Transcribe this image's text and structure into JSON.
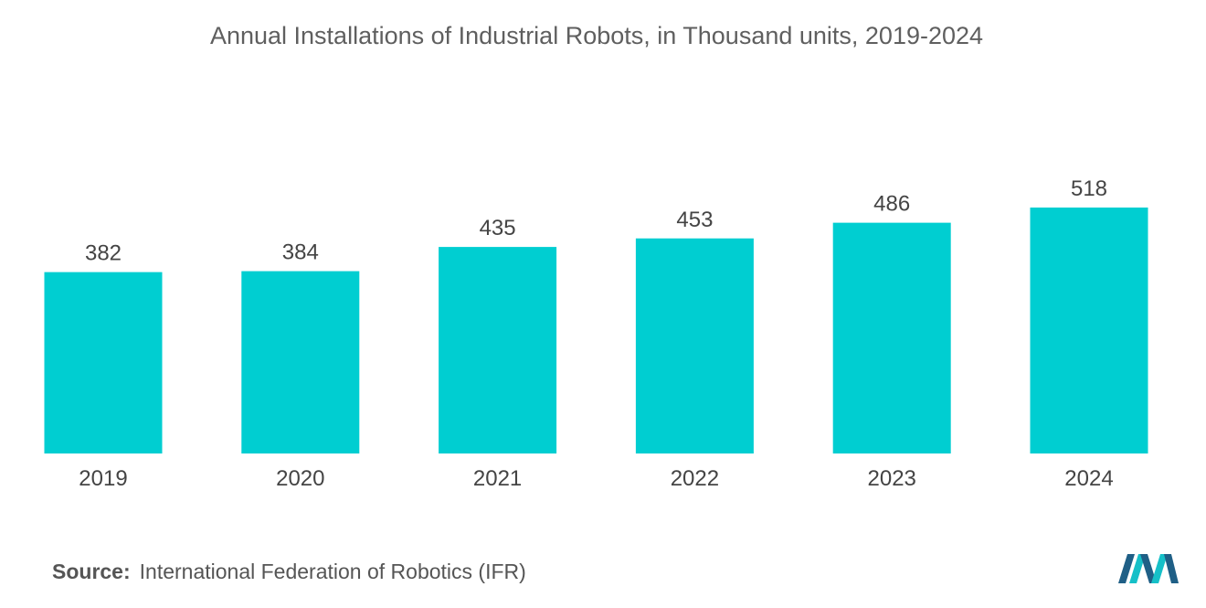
{
  "chart_data": {
    "type": "bar",
    "title": "Annual Installations of Industrial Robots, in Thousand units, 2019-2024",
    "categories": [
      "2019",
      "2020",
      "2021",
      "2022",
      "2023",
      "2024"
    ],
    "values": [
      382,
      384,
      435,
      453,
      486,
      518
    ],
    "xlabel": "",
    "ylabel": "",
    "ylim": [
      0,
      530
    ],
    "grid": false,
    "legend": "none",
    "bar_color": "#00ced1"
  },
  "source": {
    "label": "Source:",
    "text": "International Federation of Robotics (IFR)"
  },
  "colors": {
    "bar": "#00ced1",
    "logo_dark": "#1f5f86",
    "logo_light": "#16c0c8"
  },
  "logo_icon": "mordor-logo-icon"
}
